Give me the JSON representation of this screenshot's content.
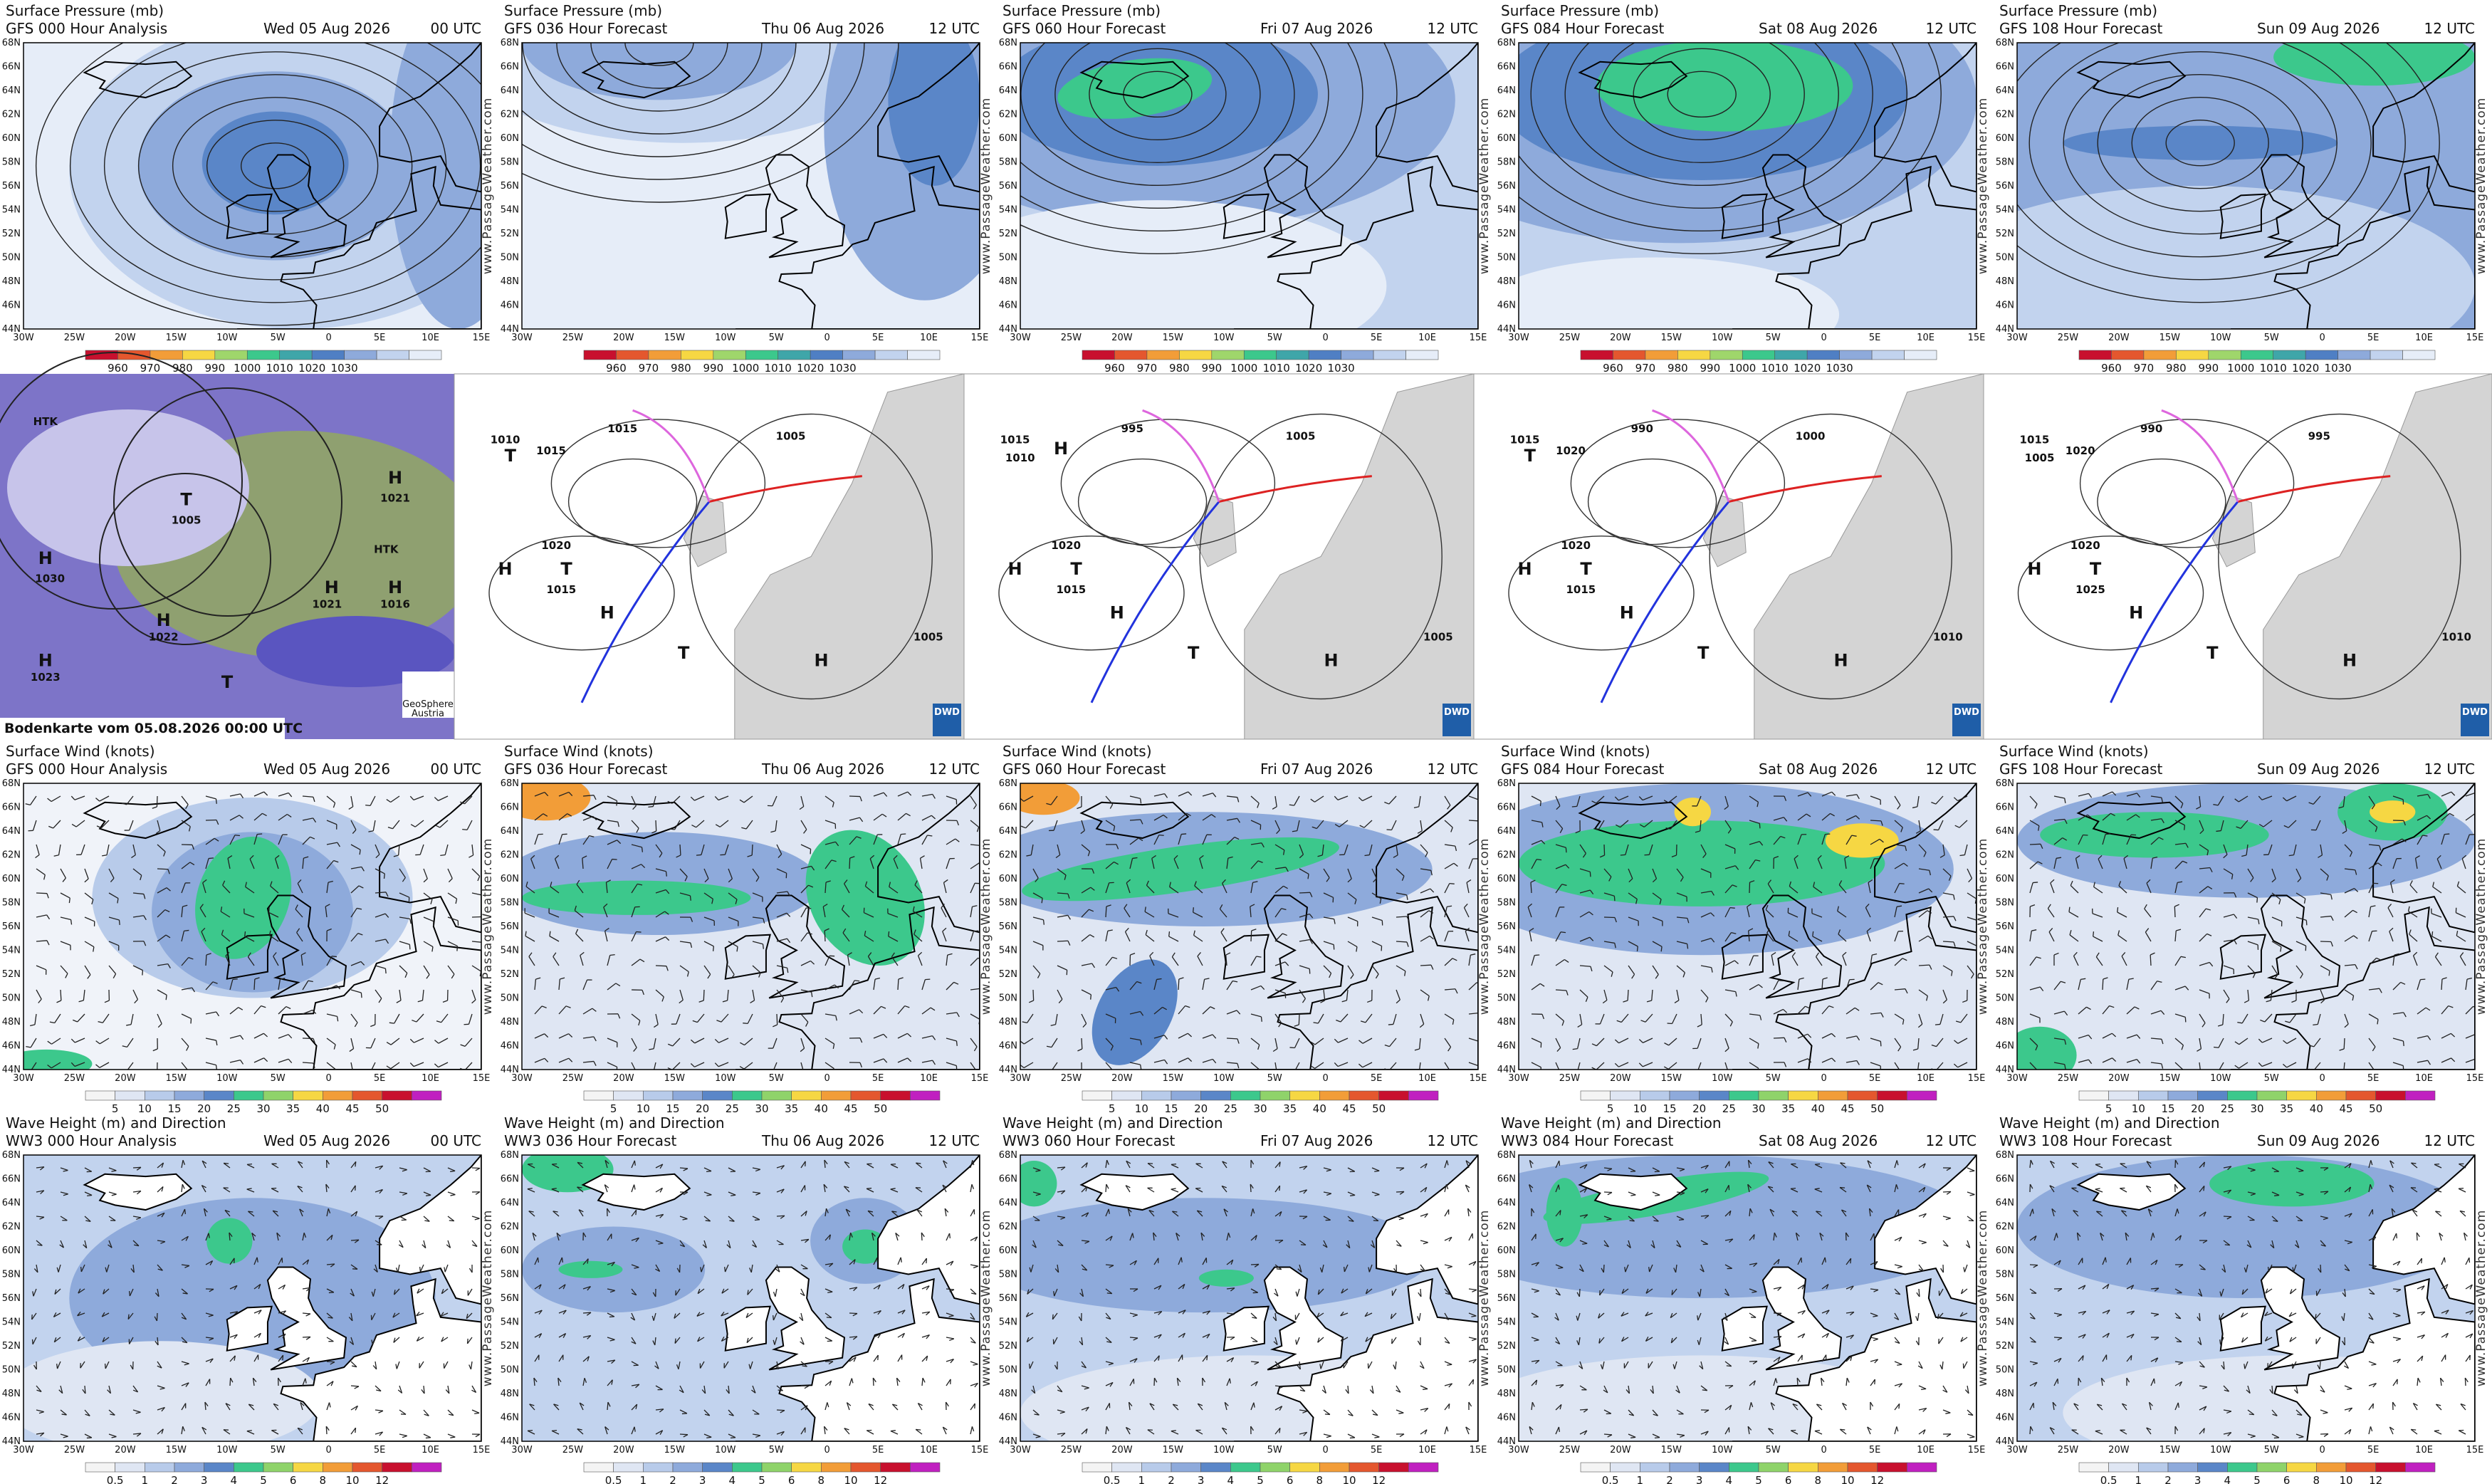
{
  "pressure_row": {
    "title": "Surface Pressure (mb)",
    "colorbar": [
      "960",
      "970",
      "980",
      "990",
      "1000",
      "1010",
      "1020",
      "1030"
    ],
    "panels": [
      {
        "model": "GFS 000 Hour Analysis",
        "date": "Wed 05 Aug 2026",
        "time": "00 UTC"
      },
      {
        "model": "GFS 036 Hour Forecast",
        "date": "Thu 06 Aug 2026",
        "time": "12 UTC"
      },
      {
        "model": "GFS 060 Hour Forecast",
        "date": "Fri 07 Aug 2026",
        "time": "12 UTC"
      },
      {
        "model": "GFS 084 Hour Forecast",
        "date": "Sat 08 Aug 2026",
        "time": "12 UTC"
      },
      {
        "model": "GFS 108 Hour Forecast",
        "date": "Sun 09 Aug 2026",
        "time": "12 UTC"
      }
    ]
  },
  "synoptic_row": {
    "satellite": {
      "caption": "Bodenkarte vom 05.08.2026 00:00 UTC",
      "credit": [
        "GeoSphere",
        "Austria"
      ],
      "labels": [
        "HTK",
        "H",
        "1030",
        "T",
        "1005",
        "H",
        "1021",
        "HTK",
        "H",
        "1021",
        "H",
        "1022",
        "H",
        "1023",
        "T",
        "H",
        "1016"
      ]
    },
    "dwd_panels": [
      {
        "logo": "DWD",
        "labels": [
          "1010",
          "T",
          "1015",
          "1015",
          "1005",
          "1020",
          "T",
          "1015",
          "H",
          "H",
          "T",
          "1005",
          "H"
        ]
      },
      {
        "logo": "DWD",
        "labels": [
          "1015",
          "1010",
          "H",
          "995",
          "1005",
          "1020",
          "T",
          "1015",
          "H",
          "H",
          "T",
          "1005",
          "H"
        ]
      },
      {
        "logo": "DWD",
        "labels": [
          "1015",
          "T",
          "1020",
          "990",
          "1000",
          "1020",
          "T",
          "1015",
          "H",
          "H",
          "T",
          "1010",
          "H"
        ]
      },
      {
        "logo": "DWD",
        "labels": [
          "1015",
          "1005",
          "1020",
          "990",
          "995",
          "1020",
          "T",
          "1025",
          "H",
          "H",
          "T",
          "1010",
          "H"
        ]
      }
    ]
  },
  "wind_row": {
    "title": "Surface Wind (knots)",
    "colorbar": [
      "5",
      "10",
      "15",
      "20",
      "25",
      "30",
      "35",
      "40",
      "45",
      "50"
    ],
    "panels": [
      {
        "model": "GFS 000 Hour Analysis",
        "date": "Wed 05 Aug 2026",
        "time": "00 UTC"
      },
      {
        "model": "GFS 036 Hour Forecast",
        "date": "Thu 06 Aug 2026",
        "time": "12 UTC"
      },
      {
        "model": "GFS 060 Hour Forecast",
        "date": "Fri 07 Aug 2026",
        "time": "12 UTC"
      },
      {
        "model": "GFS 084 Hour Forecast",
        "date": "Sat 08 Aug 2026",
        "time": "12 UTC"
      },
      {
        "model": "GFS 108 Hour Forecast",
        "date": "Sun 09 Aug 2026",
        "time": "12 UTC"
      }
    ]
  },
  "wave_row": {
    "title": "Wave Height (m) and Direction",
    "colorbar": [
      "0.5",
      "1",
      "2",
      "3",
      "4",
      "5",
      "6",
      "8",
      "10",
      "12"
    ],
    "panels": [
      {
        "model": "WW3 000 Hour Analysis",
        "date": "Wed 05 Aug 2026",
        "time": "00 UTC"
      },
      {
        "model": "WW3 036 Hour Forecast",
        "date": "Thu 06 Aug 2026",
        "time": "12 UTC"
      },
      {
        "model": "WW3 060 Hour Forecast",
        "date": "Fri 07 Aug 2026",
        "time": "12 UTC"
      },
      {
        "model": "WW3 084 Hour Forecast",
        "date": "Sat 08 Aug 2026",
        "time": "12 UTC"
      },
      {
        "model": "WW3 108 Hour Forecast",
        "date": "Sun 09 Aug 2026",
        "time": "12 UTC"
      }
    ]
  },
  "lat_labels": [
    "68N",
    "66N",
    "64N",
    "62N",
    "60N",
    "58N",
    "56N",
    "54N",
    "52N",
    "50N",
    "48N",
    "46N",
    "44N"
  ],
  "lon_labels": [
    "30W",
    "25W",
    "20W",
    "15W",
    "10W",
    "5W",
    "0",
    "5E",
    "10E",
    "15E"
  ],
  "watermark": "www.PassageWeather.com"
}
